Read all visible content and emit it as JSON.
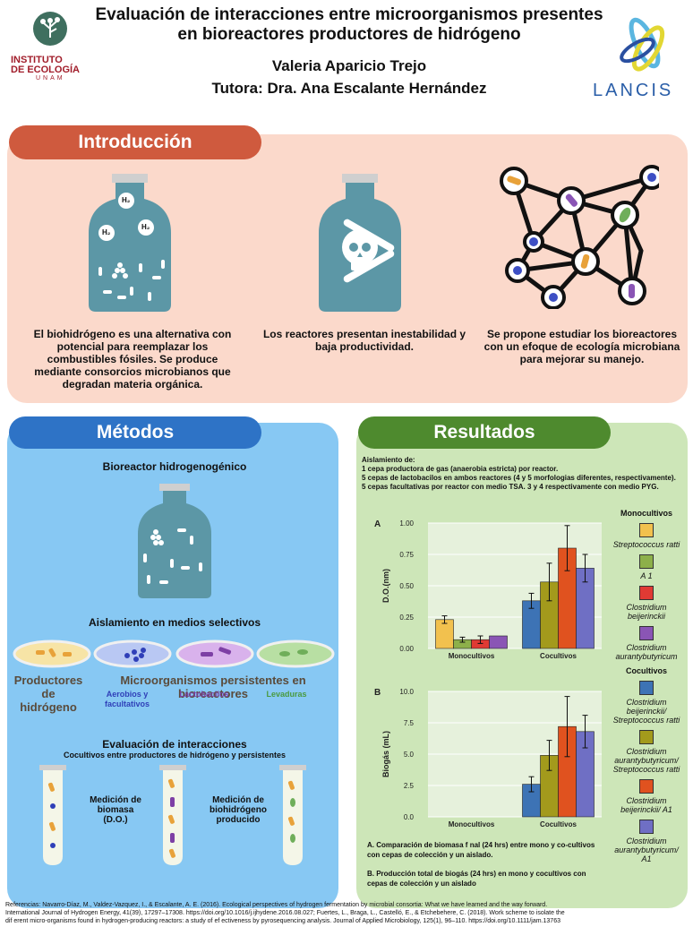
{
  "header": {
    "title_line1": "Evaluación de interacciones entre microorganismos presentes",
    "title_line2": "en bioreactores productores de hidrógeno",
    "author": "Valeria Aparicio Trejo",
    "tutor": "Tutora: Dra. Ana Escalante Hernández",
    "iec_line1": "INSTITUTO",
    "iec_line2": "DE ECOLOGÍA",
    "iec_unam": "UNAM",
    "lancis": "LANCIS"
  },
  "intro": {
    "title": "Introducción",
    "text1": "El biohidrógeno es una alternativa con potencial para reemplazar los combustibles fósiles. Se produce mediante consorcios microbianos que degradan materia orgánica.",
    "text2": "Los reactores presentan inestabilidad y baja productividad.",
    "text3": "Se propone estudiar los bioreactores con un efoque de ecología microbiana para mejorar su manejo.",
    "h2a": "H₂",
    "h2b": "H₂",
    "h2c": "H₂",
    "h2d": "H₂"
  },
  "methods": {
    "title": "Métodos",
    "bioreactor": "Bioreactor hidrogenogénico",
    "isolation": "Aislamiento en medios selectivos",
    "producers": "Productores de hidrógeno",
    "persistent": "Microorganismos persistentes en bioreactores",
    "aerobic": "Aerobios y facultativos",
    "lacto": "Lactobacilos",
    "yeast": "Levaduras",
    "eval_title": "Evaluación de interacciones",
    "eval_sub": "Cocultivos entre productores de hidrógeno y persistentes",
    "biomass": "Medición de biomasa (D.O.)",
    "biohydrogen": "Medición de biohidrógeno producido"
  },
  "results": {
    "title": "Resultados",
    "isolation_head": "Aislamiento de:",
    "iso1": "1 cepa productora de gas (anaerobia estricta) por reactor.",
    "iso2": "5 cepas de lactobacilos en ambos reactores (4 y 5 morfologias diferentes, respectivamente).",
    "iso3": "5 cepas facultativas por reactor con medio TSA. 3 y 4 respectivamente con medio PYG.",
    "caption_a": "A. Comparación de biomasa f nal (24 hrs) entre mono y co-cultivos con cepas de colección y un aislado.",
    "caption_b": "B. Producción total de biogás (24 hrs) en mono y cocultivos con cepas de colección y un aislado"
  },
  "legend": {
    "mono_title": "Monocultivos",
    "co_title": "Cocultivos",
    "mono": [
      {
        "label": "Streptococcus ratti",
        "color": "#f2c14e"
      },
      {
        "label": "A 1",
        "color": "#8db04a"
      },
      {
        "label": "Clostridium beijerinckii",
        "color": "#e03a34"
      },
      {
        "label": "Clostridium aurantybutyricum",
        "color": "#8a55b5"
      }
    ],
    "co": [
      {
        "label": "Clostridium beijerinckii/ Streptococcus ratti",
        "color": "#3d73b5"
      },
      {
        "label": "Clostridium aurantybutyricum/ Streptococcus ratti",
        "color": "#a39a1c"
      },
      {
        "label": "Clostridium beijerinckii/ A1",
        "color": "#e0521f"
      },
      {
        "label": "Clostridium aurantybutyricum/ A1",
        "color": "#6f6fc4"
      }
    ]
  },
  "chart_data": [
    {
      "type": "bar",
      "panel": "A",
      "ylabel": "D.O.(nm)",
      "ylim": [
        0,
        1.0
      ],
      "yticks": [
        "0.00",
        "0.25",
        "0.50",
        "0.75",
        "1.00"
      ],
      "groups": [
        "Monocultivos",
        "Cocultivos"
      ],
      "series": [
        {
          "group": "Monocultivos",
          "values": [
            0.23,
            0.07,
            0.07,
            0.1
          ],
          "errors": [
            0.03,
            0.02,
            0.03,
            0.0
          ],
          "colors": [
            "#f2c14e",
            "#8db04a",
            "#e03a34",
            "#8a55b5"
          ]
        },
        {
          "group": "Cocultivos",
          "values": [
            0.38,
            0.53,
            0.8,
            0.64
          ],
          "errors": [
            0.06,
            0.15,
            0.18,
            0.11
          ],
          "colors": [
            "#3d73b5",
            "#a39a1c",
            "#e0521f",
            "#6f6fc4"
          ]
        }
      ]
    },
    {
      "type": "bar",
      "panel": "B",
      "ylabel": "Biogás (mL)",
      "ylim": [
        0,
        10
      ],
      "yticks": [
        "0.0",
        "2.5",
        "5.0",
        "7.5",
        "10.0"
      ],
      "groups": [
        "Monocultivos",
        "Cocultivos"
      ],
      "series": [
        {
          "group": "Monocultivos",
          "values": [
            0,
            0,
            0,
            0
          ],
          "errors": [
            0,
            0,
            0,
            0
          ],
          "colors": [
            "#f2c14e",
            "#8db04a",
            "#e03a34",
            "#8a55b5"
          ]
        },
        {
          "group": "Cocultivos",
          "values": [
            2.6,
            4.9,
            7.2,
            6.8
          ],
          "errors": [
            0.6,
            1.2,
            2.4,
            1.3
          ],
          "colors": [
            "#3d73b5",
            "#a39a1c",
            "#e0521f",
            "#6f6fc4"
          ]
        }
      ]
    }
  ],
  "references": {
    "line1": "Referencias: Navarro-Díaz, M., Valdez-Vazquez, I., & Escalante, A. E. (2016). Ecological perspectives of hydrogen fermentation by microbial consortia: What we have learned and the way forward.",
    "line2": "International Journal of Hydrogen Energy, 41(39), 17297–17308. https://doi.org/10.1016/j.ijhydene.2016.08.027; Fuertes, L., Braga, L., Castelló, E., & Etchebehere, C. (2018). Work scheme to isolate the",
    "line3": "dif erent micro-organisms found in hydrogen-producing reactors: a study of ef ectiveness by pyrosequencing analysis. Journal of Applied Microbiology, 125(1), 96–110. https://doi.org/10.1111/jam.13763"
  }
}
